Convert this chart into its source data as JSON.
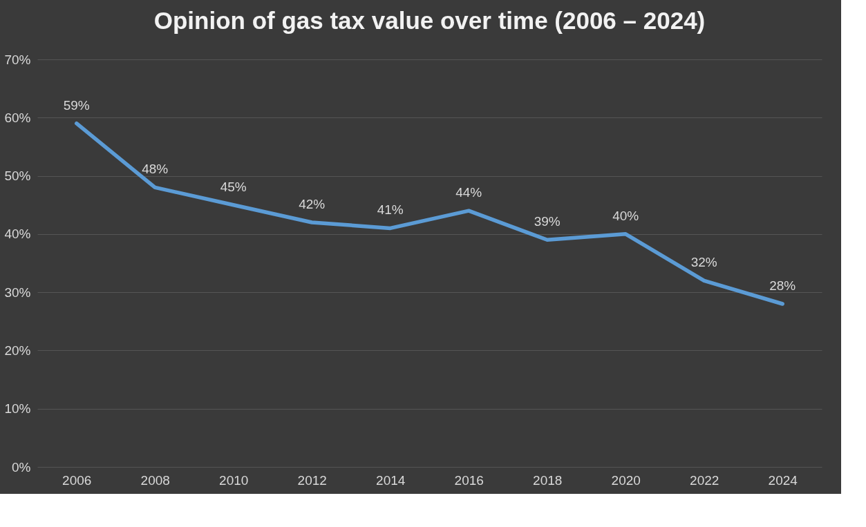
{
  "chart_data": {
    "type": "line",
    "title": "Opinion of gas tax value over time (2006 – 2024)",
    "categories": [
      "2006",
      "2008",
      "2010",
      "2012",
      "2014",
      "2016",
      "2018",
      "2020",
      "2022",
      "2024"
    ],
    "series": [
      {
        "color": "#5b9bd5",
        "values": [
          59,
          48,
          45,
          42,
          41,
          44,
          39,
          40,
          32,
          28
        ],
        "value_labels": [
          "59%",
          "48%",
          "45%",
          "42%",
          "41%",
          "44%",
          "39%",
          "40%",
          "32%",
          "28%"
        ]
      }
    ],
    "ylim": [
      0,
      70
    ],
    "yticks": [
      {
        "value": 0,
        "label": "0%"
      },
      {
        "value": 10,
        "label": "10%"
      },
      {
        "value": 20,
        "label": "20%"
      },
      {
        "value": 30,
        "label": "30%"
      },
      {
        "value": 40,
        "label": "40%"
      },
      {
        "value": 50,
        "label": "50%"
      },
      {
        "value": 60,
        "label": "60%"
      },
      {
        "value": 70,
        "label": "70%"
      }
    ],
    "grid": "y",
    "marker": "none",
    "line_style": "solid"
  }
}
